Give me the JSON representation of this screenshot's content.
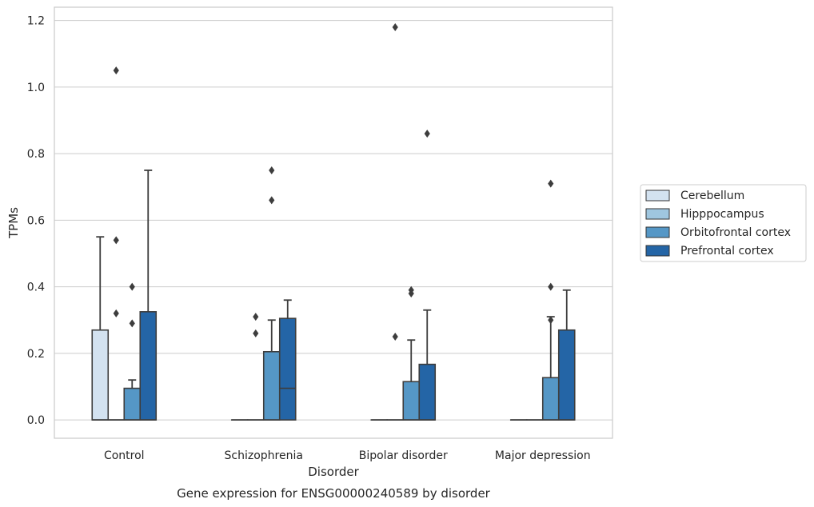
{
  "chart_data": {
    "type": "box",
    "caption": "Gene expression for ENSG00000240589 by disorder",
    "xlabel": "Disorder",
    "ylabel": "TPMs",
    "ylim": [
      -0.055,
      1.24
    ],
    "yticks": [
      0.0,
      0.2,
      0.4,
      0.6,
      0.8,
      1.0,
      1.2
    ],
    "ytick_labels": [
      "0.0",
      "0.2",
      "0.4",
      "0.6",
      "0.8",
      "1.0",
      "1.2"
    ],
    "grid": "horizontal",
    "legend_position": "right",
    "categories": [
      "Control",
      "Schizophrenia",
      "Bipolar disorder",
      "Major depression"
    ],
    "series": [
      {
        "name": "Cerebellum",
        "color": "#d3e2f0",
        "boxes": [
          {
            "q1": 0.0,
            "median": 0.0,
            "q3": 0.27,
            "whislo": 0.0,
            "whishi": 0.55,
            "fliers": []
          },
          {
            "q1": 0.0,
            "median": 0.0,
            "q3": 0.0,
            "whislo": 0.0,
            "whishi": 0.0,
            "fliers": []
          },
          {
            "q1": 0.0,
            "median": 0.0,
            "q3": 0.0,
            "whislo": 0.0,
            "whishi": 0.0,
            "fliers": []
          },
          {
            "q1": 0.0,
            "median": 0.0,
            "q3": 0.0,
            "whislo": 0.0,
            "whishi": 0.0,
            "fliers": []
          }
        ]
      },
      {
        "name": "Hipppocampus",
        "color": "#9fc6df",
        "boxes": [
          {
            "q1": 0.0,
            "median": 0.0,
            "q3": 0.0,
            "whislo": 0.0,
            "whishi": 0.0,
            "fliers": [
              1.05,
              0.54,
              0.32
            ]
          },
          {
            "q1": 0.0,
            "median": 0.0,
            "q3": 0.0,
            "whislo": 0.0,
            "whishi": 0.0,
            "fliers": [
              0.26,
              0.31
            ]
          },
          {
            "q1": 0.0,
            "median": 0.0,
            "q3": 0.0,
            "whislo": 0.0,
            "whishi": 0.0,
            "fliers": [
              1.18,
              0.25
            ]
          },
          {
            "q1": 0.0,
            "median": 0.0,
            "q3": 0.0,
            "whislo": 0.0,
            "whishi": 0.0,
            "fliers": []
          }
        ]
      },
      {
        "name": "Orbitofrontal cortex",
        "color": "#5597c6",
        "boxes": [
          {
            "q1": 0.0,
            "median": 0.0,
            "q3": 0.095,
            "whislo": 0.0,
            "whishi": 0.12,
            "fliers": [
              0.4,
              0.29
            ]
          },
          {
            "q1": 0.0,
            "median": 0.0,
            "q3": 0.205,
            "whislo": 0.0,
            "whishi": 0.3,
            "fliers": [
              0.75,
              0.66
            ]
          },
          {
            "q1": 0.0,
            "median": 0.0,
            "q3": 0.115,
            "whislo": 0.0,
            "whishi": 0.24,
            "fliers": [
              0.39,
              0.38
            ]
          },
          {
            "q1": 0.0,
            "median": 0.0,
            "q3": 0.127,
            "whislo": 0.0,
            "whishi": 0.31,
            "fliers": [
              0.71,
              0.4,
              0.3
            ]
          }
        ]
      },
      {
        "name": "Prefrontal cortex",
        "color": "#2465a6",
        "boxes": [
          {
            "q1": 0.0,
            "median": 0.0,
            "q3": 0.325,
            "whislo": 0.0,
            "whishi": 0.75,
            "fliers": []
          },
          {
            "q1": 0.0,
            "median": 0.095,
            "q3": 0.305,
            "whislo": 0.0,
            "whishi": 0.36,
            "fliers": []
          },
          {
            "q1": 0.0,
            "median": 0.0,
            "q3": 0.167,
            "whislo": 0.0,
            "whishi": 0.33,
            "fliers": [
              0.86
            ]
          },
          {
            "q1": 0.0,
            "median": 0.0,
            "q3": 0.27,
            "whislo": 0.0,
            "whishi": 0.39,
            "fliers": []
          }
        ]
      }
    ]
  }
}
